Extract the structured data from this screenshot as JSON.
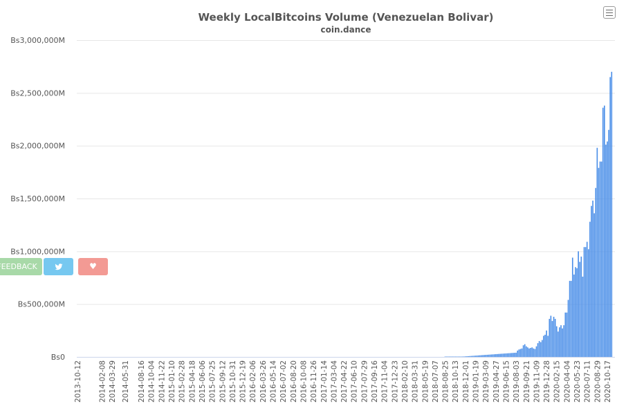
{
  "chart_data": {
    "type": "bar",
    "title": "Weekly LocalBitcoins Volume (Venezuelan Bolivar)",
    "subtitle": "coin.dance",
    "xlabel": "",
    "ylabel": "",
    "y_ticks": [
      "Bs0",
      "Bs500,000M",
      "Bs1,000,000M",
      "Bs1,500,000M",
      "Bs2,000,000M",
      "Bs2,500,000M",
      "Bs3,000,000M"
    ],
    "ylim": [
      0,
      3000000
    ],
    "y_unit": "millions of Bs",
    "x_tick_labels": [
      "2013-10-12",
      "2014-02-08",
      "2014-03-29",
      "2014-05-31",
      "2014-08-16",
      "2014-10-04",
      "2014-11-22",
      "2015-01-10",
      "2015-02-28",
      "2015-04-18",
      "2015-06-06",
      "2015-07-25",
      "2015-09-12",
      "2015-10-31",
      "2015-12-19",
      "2016-02-06",
      "2016-03-26",
      "2016-05-14",
      "2016-07-02",
      "2016-08-20",
      "2016-10-08",
      "2016-11-26",
      "2017-01-14",
      "2017-03-04",
      "2017-04-22",
      "2017-06-10",
      "2017-07-29",
      "2017-09-16",
      "2017-11-04",
      "2017-12-23",
      "2018-02-10",
      "2018-03-31",
      "2018-05-19",
      "2018-07-07",
      "2018-08-25",
      "2018-10-13",
      "2018-12-01",
      "2019-01-19",
      "2019-03-09",
      "2019-04-27",
      "2019-06-15",
      "2019-08-03",
      "2019-09-21",
      "2019-11-09",
      "2019-12-28",
      "2020-02-15",
      "2020-04-04",
      "2020-05-23",
      "2020-07-11",
      "2020-08-29",
      "2020-10-17"
    ],
    "grid": true,
    "legend": "none",
    "bar_color": "#4a8ee8",
    "recent_weekly_values_start": "2018-08-25",
    "recent_weekly_values": [
      300,
      400,
      500,
      600,
      700,
      900,
      1100,
      1300,
      1600,
      2000,
      2500,
      3000,
      3500,
      4000,
      5000,
      6000,
      7000,
      8000,
      9000,
      10000,
      11000,
      12000,
      13000,
      14000,
      15000,
      16000,
      17000,
      18000,
      19000,
      20000,
      21000,
      22000,
      23000,
      24000,
      25000,
      26000,
      27000,
      28000,
      29000,
      30000,
      31000,
      32000,
      33000,
      34000,
      35000,
      36000,
      37000,
      38000,
      39000,
      40000,
      60000,
      70000,
      75000,
      80000,
      110000,
      120000,
      100000,
      90000,
      80000,
      85000,
      90000,
      80000,
      75000,
      100000,
      130000,
      150000,
      140000,
      160000,
      200000,
      210000,
      250000,
      200000,
      360000,
      390000,
      340000,
      380000,
      360000,
      290000,
      240000,
      280000,
      300000,
      270000,
      300000,
      420000,
      420000,
      540000,
      720000,
      720000,
      940000,
      780000,
      850000,
      840000,
      1000000,
      900000,
      950000,
      760000,
      1040000,
      1040000,
      1090000,
      1020000,
      1280000,
      1430000,
      1480000,
      1360000,
      1600000,
      1980000,
      1790000,
      1850000,
      1850000,
      2360000,
      2380000,
      2010000,
      2040000,
      2150000,
      2650000,
      2700000
    ]
  },
  "ui": {
    "menu_icon": "hamburger-menu-icon",
    "feedback_label": "FEEDBACK",
    "twitter_icon": "twitter-icon",
    "heart_icon": "heart-icon"
  },
  "colors": {
    "bar": "#4a8ee8",
    "grid": "#e6e6e6",
    "feedback": "#a8d9a8",
    "twitter": "#76c8f0",
    "heart": "#f39a94"
  }
}
